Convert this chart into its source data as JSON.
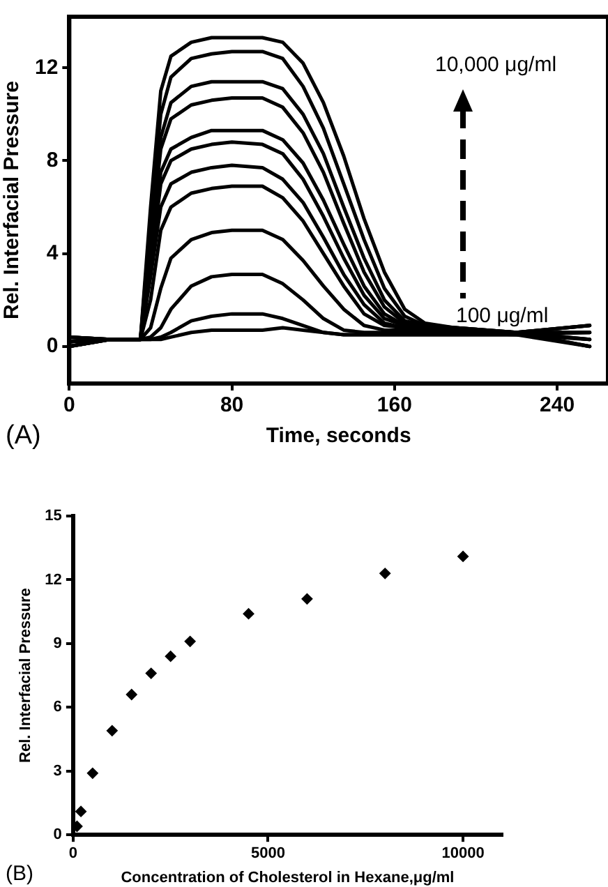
{
  "chart_data": [
    {
      "type": "line",
      "xlabel": "Time, seconds",
      "ylabel": "Rel. Interfacial Pressure",
      "xlim": [
        0,
        265
      ],
      "ylim": [
        -1.6,
        14.2
      ],
      "xticks": [
        0,
        80,
        160,
        240
      ],
      "yticks": [
        0,
        4,
        8,
        12
      ],
      "grid": false,
      "legend": false,
      "marker": "none",
      "line_style": "solid",
      "x": [
        0,
        20,
        35,
        40,
        45,
        50,
        60,
        70,
        80,
        95,
        105,
        115,
        125,
        135,
        145,
        155,
        165,
        175,
        190,
        220,
        256
      ],
      "series": [
        {
          "color": "#000000",
          "values": [
            0,
            0.3,
            0.3,
            6,
            11,
            12.5,
            13.1,
            13.3,
            13.3,
            13.3,
            13.1,
            12.2,
            10.5,
            8.2,
            5.5,
            3.2,
            1.6,
            1,
            0.8,
            0.6,
            0.9
          ]
        },
        {
          "color": "#000000",
          "values": [
            0,
            0.3,
            0.3,
            5.5,
            10,
            11.6,
            12.4,
            12.6,
            12.7,
            12.7,
            12.4,
            11.2,
            9.4,
            7,
            4.6,
            2.5,
            1.3,
            0.9,
            0.8,
            0.6,
            0.6
          ]
        },
        {
          "color": "#000000",
          "values": [
            0,
            0.3,
            0.3,
            5,
            9,
            10.5,
            11.2,
            11.4,
            11.4,
            11.4,
            11.1,
            10,
            8.3,
            6,
            3.8,
            2,
            1.1,
            0.9,
            0.8,
            0.6,
            0.3
          ]
        },
        {
          "color": "#000000",
          "values": [
            0,
            0.3,
            0.3,
            4.5,
            8.5,
            9.8,
            10.4,
            10.6,
            10.7,
            10.7,
            10.3,
            9.2,
            7.5,
            5.3,
            3.2,
            1.7,
            1,
            0.9,
            0.7,
            0.6,
            0
          ]
        },
        {
          "color": "#000000",
          "values": [
            0.2,
            0.3,
            0.3,
            4,
            7.5,
            8.5,
            9,
            9.3,
            9.3,
            9.3,
            8.9,
            7.9,
            6.3,
            4.4,
            2.6,
            1.4,
            0.9,
            0.8,
            0.7,
            0.6,
            0.9
          ]
        },
        {
          "color": "#000000",
          "values": [
            0.2,
            0.3,
            0.3,
            3.5,
            7,
            8,
            8.5,
            8.7,
            8.8,
            8.7,
            8.3,
            7.2,
            5.6,
            3.8,
            2.2,
            1.2,
            0.9,
            0.8,
            0.7,
            0.6,
            0.6
          ]
        },
        {
          "color": "#000000",
          "values": [
            0.2,
            0.3,
            0.3,
            3,
            6,
            7,
            7.5,
            7.7,
            7.8,
            7.7,
            7.2,
            6.2,
            4.7,
            3.1,
            1.8,
            1,
            0.8,
            0.7,
            0.7,
            0.6,
            0.3
          ]
        },
        {
          "color": "#000000",
          "values": [
            0.2,
            0.3,
            0.3,
            2,
            5,
            6,
            6.6,
            6.8,
            6.9,
            6.9,
            6.4,
            5.4,
            4,
            2.6,
            1.4,
            0.9,
            0.8,
            0.7,
            0.7,
            0.6,
            0
          ]
        },
        {
          "color": "#000000",
          "values": [
            0.4,
            0.3,
            0.3,
            0.8,
            2.5,
            3.8,
            4.6,
            4.9,
            5,
            5,
            4.6,
            3.7,
            2.6,
            1.6,
            0.9,
            0.7,
            0.7,
            0.6,
            0.6,
            0.6,
            0.9
          ]
        },
        {
          "color": "#000000",
          "values": [
            0.4,
            0.3,
            0.3,
            0.4,
            0.8,
            1.6,
            2.6,
            3,
            3.1,
            3.1,
            2.7,
            2,
            1.2,
            0.7,
            0.6,
            0.6,
            0.6,
            0.6,
            0.6,
            0.5,
            0.6
          ]
        },
        {
          "color": "#000000",
          "values": [
            0.4,
            0.3,
            0.3,
            0.3,
            0.4,
            0.6,
            1.1,
            1.3,
            1.4,
            1.4,
            1.2,
            0.9,
            0.6,
            0.5,
            0.5,
            0.5,
            0.5,
            0.5,
            0.5,
            0.5,
            0.3
          ]
        },
        {
          "color": "#000000",
          "values": [
            0.4,
            0.3,
            0.3,
            0.3,
            0.3,
            0.4,
            0.6,
            0.7,
            0.7,
            0.7,
            0.8,
            0.7,
            0.6,
            0.5,
            0.5,
            0.5,
            0.5,
            0.5,
            0.5,
            0.5,
            0
          ]
        }
      ],
      "annotations": [
        "10,000 μg/ml",
        "100 μg/ml",
        "(A)"
      ]
    },
    {
      "type": "scatter",
      "xlabel": "Concentration of Cholesterol in Hexane,μg/ml",
      "ylabel": "Rel. Interfacial Pressure",
      "xlim": [
        0,
        11000
      ],
      "ylim": [
        0,
        15
      ],
      "xticks": [
        0,
        5000,
        10000
      ],
      "yticks": [
        0,
        3,
        6,
        9,
        12,
        15
      ],
      "grid": false,
      "legend": false,
      "marker": "diamond",
      "x": [
        100,
        200,
        500,
        1000,
        1500,
        2000,
        2500,
        3000,
        4500,
        6000,
        8000,
        10000
      ],
      "series": [
        {
          "color": "#000000",
          "values": [
            0.4,
            1.1,
            2.9,
            4.9,
            6.6,
            7.6,
            8.4,
            9.1,
            10.4,
            11.1,
            12.3,
            13.1
          ]
        }
      ],
      "annotations": [
        "(B)"
      ]
    }
  ]
}
